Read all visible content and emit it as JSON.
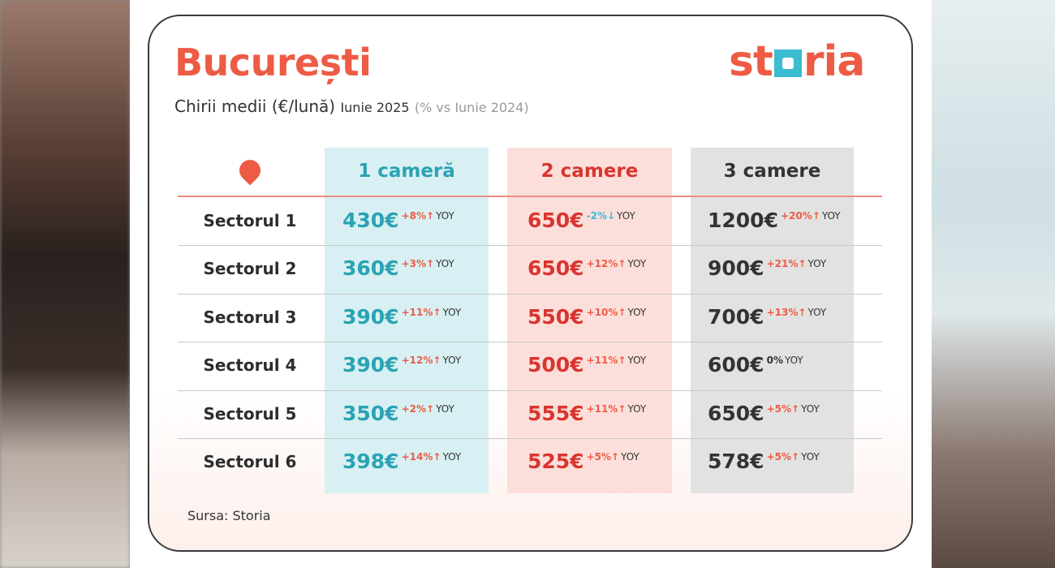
{
  "title": "București",
  "subtitle": {
    "main": "Chirii medii (€/lună)",
    "date": "Iunie 2025",
    "comparison": "(% vs Iunie 2024)"
  },
  "logo": {
    "text": "storia",
    "colors": {
      "text": "#ee5b45",
      "square": "#3bbcd0"
    }
  },
  "colors": {
    "col1": "#2aa3b3",
    "col2": "#d9352e",
    "col3": "#333333",
    "increase": "#ee5b45",
    "decrease": "#3bbcd0",
    "neutral": "#333333"
  },
  "location_icon": "map-pin-icon",
  "columns": [
    "1 cameră",
    "2 camere",
    "3 camere"
  ],
  "rows": [
    {
      "sector": "Sectorul 1",
      "cells": [
        {
          "value": "430€",
          "change": "+8%↑",
          "dir": "up"
        },
        {
          "value": "650€",
          "change": "-2%↓",
          "dir": "down"
        },
        {
          "value": "1200€",
          "change": "+20%↑",
          "dir": "up"
        }
      ]
    },
    {
      "sector": "Sectorul 2",
      "cells": [
        {
          "value": "360€",
          "change": "+3%↑",
          "dir": "up"
        },
        {
          "value": "650€",
          "change": "+12%↑",
          "dir": "up"
        },
        {
          "value": "900€",
          "change": "+21%↑",
          "dir": "up"
        }
      ]
    },
    {
      "sector": "Sectorul 3",
      "cells": [
        {
          "value": "390€",
          "change": "+11%↑",
          "dir": "up"
        },
        {
          "value": "550€",
          "change": "+10%↑",
          "dir": "up"
        },
        {
          "value": "700€",
          "change": "+13%↑",
          "dir": "up"
        }
      ]
    },
    {
      "sector": "Sectorul 4",
      "cells": [
        {
          "value": "390€",
          "change": "+12%↑",
          "dir": "up"
        },
        {
          "value": "500€",
          "change": "+11%↑",
          "dir": "up"
        },
        {
          "value": "600€",
          "change": "0%",
          "dir": "flat"
        }
      ]
    },
    {
      "sector": "Sectorul 5",
      "cells": [
        {
          "value": "350€",
          "change": "+2%↑",
          "dir": "up"
        },
        {
          "value": "555€",
          "change": "+11%↑",
          "dir": "up"
        },
        {
          "value": "650€",
          "change": "+5%↑",
          "dir": "up"
        }
      ]
    },
    {
      "sector": "Sectorul 6",
      "cells": [
        {
          "value": "398€",
          "change": "+14%↑",
          "dir": "up"
        },
        {
          "value": "525€",
          "change": "+5%↑",
          "dir": "up"
        },
        {
          "value": "578€",
          "change": "+5%↑",
          "dir": "up"
        }
      ]
    }
  ],
  "yoy_label": "YOY",
  "source": "Sursa: Storia"
}
